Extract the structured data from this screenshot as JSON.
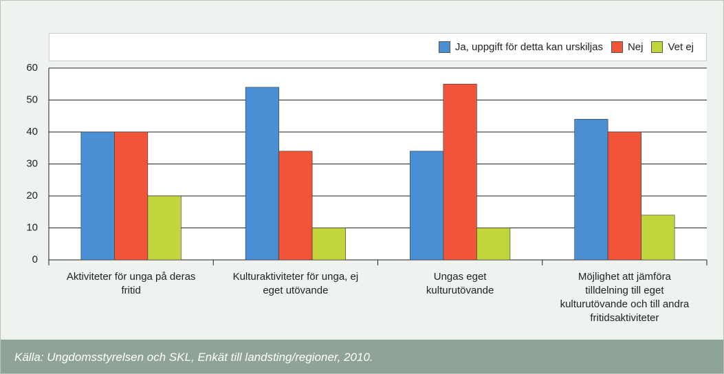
{
  "chart_data": {
    "type": "bar",
    "categories": [
      "Aktiviteter för unga på deras fritid",
      "Kulturaktiviteter för unga, ej eget utövande",
      "Ungas eget kulturutövande",
      "Möjlighet att jämföra tilldelning till eget kulturutövande och till andra fritidsaktiviteter"
    ],
    "series": [
      {
        "name": "Ja, uppgift för detta kan urskiljas",
        "color": "#4a8fd4",
        "values": [
          40,
          54,
          34,
          44
        ]
      },
      {
        "name": "Nej",
        "color": "#f0553a",
        "values": [
          40,
          34,
          55,
          40
        ]
      },
      {
        "name": "Vet ej",
        "color": "#c3d53c",
        "values": [
          20,
          10,
          10,
          14
        ]
      }
    ],
    "ylim": [
      0,
      60
    ],
    "yticks": [
      0,
      10,
      20,
      30,
      40,
      50,
      60
    ],
    "grid": true,
    "legend": "top-right",
    "source": "Källa: Ungdomsstyrelsen och SKL, Enkät till landsting/regioner, 2010."
  }
}
